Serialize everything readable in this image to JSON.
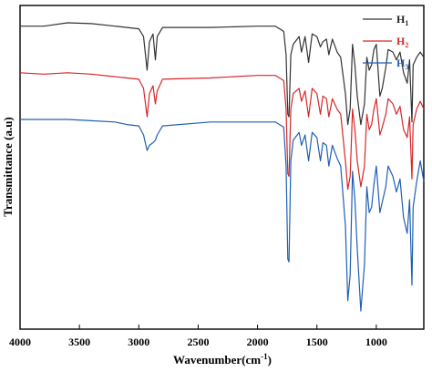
{
  "chart_data": {
    "type": "line",
    "xlabel_main": "Wavenumber(cm",
    "xlabel_sup": "-1",
    "xlabel_end": ")",
    "ylabel": "Transmittance (a.u)",
    "xlim": [
      4000,
      600
    ],
    "x_reversed": true,
    "x_ticks": [
      4000,
      3500,
      3000,
      2500,
      2000,
      1500,
      1000
    ],
    "y_ticks_shown": false,
    "grid": false,
    "legend_position": "top-right",
    "series": [
      {
        "name_main": "H",
        "name_sub": "1",
        "color": "#333333",
        "points": [
          [
            4000,
            92
          ],
          [
            3800,
            92
          ],
          [
            3600,
            93.3
          ],
          [
            3400,
            93
          ],
          [
            3200,
            92
          ],
          [
            3100,
            91.5
          ],
          [
            3000,
            91
          ],
          [
            2960,
            88
          ],
          [
            2930,
            75
          ],
          [
            2910,
            86
          ],
          [
            2880,
            89
          ],
          [
            2860,
            79
          ],
          [
            2845,
            88
          ],
          [
            2800,
            91.5
          ],
          [
            2400,
            91.5
          ],
          [
            2000,
            92
          ],
          [
            1850,
            92
          ],
          [
            1780,
            90
          ],
          [
            1760,
            81
          ],
          [
            1745,
            58
          ],
          [
            1735,
            57
          ],
          [
            1720,
            81
          ],
          [
            1700,
            85
          ],
          [
            1650,
            88
          ],
          [
            1630,
            82
          ],
          [
            1600,
            88
          ],
          [
            1570,
            78
          ],
          [
            1540,
            89
          ],
          [
            1500,
            88
          ],
          [
            1470,
            84
          ],
          [
            1450,
            86
          ],
          [
            1420,
            87
          ],
          [
            1400,
            81
          ],
          [
            1370,
            87
          ],
          [
            1330,
            82
          ],
          [
            1300,
            80
          ],
          [
            1260,
            66
          ],
          [
            1240,
            54
          ],
          [
            1220,
            60
          ],
          [
            1200,
            85
          ],
          [
            1180,
            77
          ],
          [
            1160,
            65
          ],
          [
            1130,
            54
          ],
          [
            1100,
            62
          ],
          [
            1080,
            80
          ],
          [
            1060,
            75
          ],
          [
            1040,
            77
          ],
          [
            1020,
            83
          ],
          [
            1000,
            85
          ],
          [
            970,
            65
          ],
          [
            950,
            68
          ],
          [
            920,
            76
          ],
          [
            900,
            83
          ],
          [
            860,
            82
          ],
          [
            830,
            79
          ],
          [
            800,
            82
          ],
          [
            770,
            74
          ],
          [
            740,
            70
          ],
          [
            720,
            79
          ],
          [
            700,
            55
          ],
          [
            690,
            77
          ],
          [
            660,
            80
          ],
          [
            630,
            82
          ],
          [
            600,
            80
          ]
        ]
      },
      {
        "name_main": "H",
        "name_sub": "2",
        "color": "#d62728",
        "points": [
          [
            4000,
            74
          ],
          [
            3800,
            73.5
          ],
          [
            3600,
            74
          ],
          [
            3400,
            73.5
          ],
          [
            3200,
            72.5
          ],
          [
            3100,
            72
          ],
          [
            3000,
            71.5
          ],
          [
            2960,
            68
          ],
          [
            2930,
            57
          ],
          [
            2910,
            66
          ],
          [
            2880,
            69
          ],
          [
            2860,
            62
          ],
          [
            2845,
            67
          ],
          [
            2800,
            71.5
          ],
          [
            2400,
            72
          ],
          [
            2000,
            73
          ],
          [
            1850,
            73
          ],
          [
            1780,
            71
          ],
          [
            1760,
            60
          ],
          [
            1745,
            35
          ],
          [
            1735,
            34
          ],
          [
            1720,
            60
          ],
          [
            1700,
            66
          ],
          [
            1650,
            68
          ],
          [
            1630,
            63
          ],
          [
            1600,
            67
          ],
          [
            1570,
            57
          ],
          [
            1540,
            68
          ],
          [
            1500,
            66
          ],
          [
            1470,
            58
          ],
          [
            1450,
            65
          ],
          [
            1420,
            64
          ],
          [
            1400,
            57
          ],
          [
            1370,
            64
          ],
          [
            1330,
            60
          ],
          [
            1300,
            58
          ],
          [
            1260,
            40
          ],
          [
            1240,
            29
          ],
          [
            1220,
            34
          ],
          [
            1200,
            60
          ],
          [
            1180,
            52
          ],
          [
            1160,
            40
          ],
          [
            1130,
            30
          ],
          [
            1100,
            38
          ],
          [
            1080,
            58
          ],
          [
            1060,
            52
          ],
          [
            1040,
            54
          ],
          [
            1020,
            60
          ],
          [
            1000,
            64
          ],
          [
            970,
            50
          ],
          [
            950,
            53
          ],
          [
            920,
            58
          ],
          [
            900,
            64
          ],
          [
            860,
            62
          ],
          [
            830,
            58
          ],
          [
            800,
            61
          ],
          [
            770,
            52
          ],
          [
            740,
            49
          ],
          [
            720,
            57
          ],
          [
            700,
            33
          ],
          [
            690,
            54
          ],
          [
            660,
            60
          ],
          [
            630,
            63
          ],
          [
            600,
            60
          ]
        ]
      },
      {
        "name_main": "H",
        "name_sub": "3",
        "color": "#1f5fb5",
        "points": [
          [
            4000,
            56
          ],
          [
            3800,
            56
          ],
          [
            3600,
            56
          ],
          [
            3400,
            55.5
          ],
          [
            3200,
            55
          ],
          [
            3100,
            54
          ],
          [
            3000,
            53.5
          ],
          [
            2960,
            50
          ],
          [
            2930,
            44
          ],
          [
            2910,
            46
          ],
          [
            2880,
            47
          ],
          [
            2860,
            48
          ],
          [
            2845,
            50
          ],
          [
            2800,
            53.5
          ],
          [
            2400,
            55
          ],
          [
            2000,
            55
          ],
          [
            1850,
            55
          ],
          [
            1780,
            53
          ],
          [
            1760,
            38
          ],
          [
            1745,
            2
          ],
          [
            1735,
            1
          ],
          [
            1720,
            40
          ],
          [
            1700,
            48
          ],
          [
            1650,
            51
          ],
          [
            1630,
            46
          ],
          [
            1600,
            50
          ],
          [
            1570,
            40
          ],
          [
            1540,
            51
          ],
          [
            1500,
            49
          ],
          [
            1470,
            40
          ],
          [
            1450,
            47
          ],
          [
            1420,
            46
          ],
          [
            1400,
            38
          ],
          [
            1370,
            46
          ],
          [
            1330,
            41
          ],
          [
            1300,
            38
          ],
          [
            1260,
            15
          ],
          [
            1240,
            -14
          ],
          [
            1220,
            -4
          ],
          [
            1200,
            36
          ],
          [
            1180,
            25
          ],
          [
            1160,
            6
          ],
          [
            1130,
            -18
          ],
          [
            1100,
            0
          ],
          [
            1080,
            30
          ],
          [
            1060,
            20
          ],
          [
            1040,
            22
          ],
          [
            1020,
            31
          ],
          [
            1000,
            38
          ],
          [
            970,
            20
          ],
          [
            950,
            24
          ],
          [
            920,
            30
          ],
          [
            900,
            38
          ],
          [
            860,
            34
          ],
          [
            830,
            28
          ],
          [
            800,
            33
          ],
          [
            770,
            18
          ],
          [
            740,
            12
          ],
          [
            720,
            25
          ],
          [
            700,
            -8
          ],
          [
            690,
            22
          ],
          [
            660,
            32
          ],
          [
            630,
            40
          ],
          [
            600,
            32
          ]
        ]
      }
    ]
  }
}
